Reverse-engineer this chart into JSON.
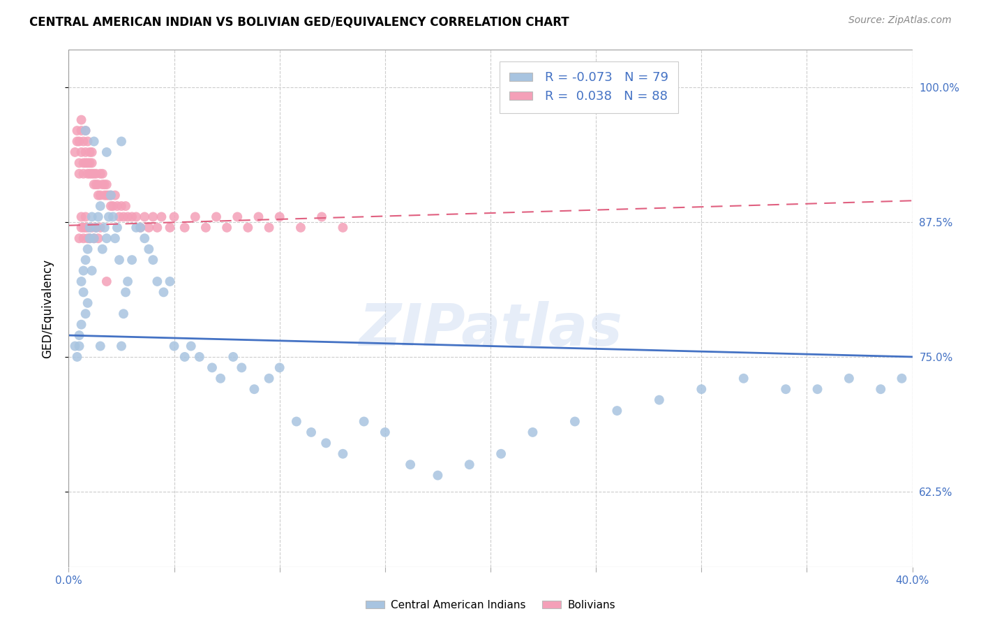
{
  "title": "CENTRAL AMERICAN INDIAN VS BOLIVIAN GED/EQUIVALENCY CORRELATION CHART",
  "source": "Source: ZipAtlas.com",
  "ylabel": "GED/Equivalency",
  "xlim": [
    0.0,
    0.4
  ],
  "ylim": [
    0.555,
    1.035
  ],
  "blue_R": "-0.073",
  "blue_N": "79",
  "pink_R": "0.038",
  "pink_N": "88",
  "blue_color": "#a8c4e0",
  "pink_color": "#f4a0b8",
  "blue_line_color": "#4472c4",
  "pink_line_color": "#e06080",
  "watermark": "ZIPatlas",
  "legend_label_blue": "Central American Indians",
  "legend_label_pink": "Bolivians",
  "ytick_positions": [
    0.625,
    0.75,
    0.875,
    1.0
  ],
  "ytick_labels": [
    "62.5%",
    "75.0%",
    "87.5%",
    "100.0%"
  ],
  "xtick_positions": [
    0.0,
    0.05,
    0.1,
    0.15,
    0.2,
    0.25,
    0.3,
    0.35,
    0.4
  ],
  "blue_line_x": [
    0.0,
    0.4
  ],
  "blue_line_y": [
    0.77,
    0.75
  ],
  "pink_line_x": [
    0.0,
    0.4
  ],
  "pink_line_y": [
    0.872,
    0.895
  ],
  "blue_scatter_x": [
    0.003,
    0.004,
    0.005,
    0.005,
    0.006,
    0.006,
    0.007,
    0.007,
    0.008,
    0.008,
    0.009,
    0.009,
    0.01,
    0.01,
    0.011,
    0.011,
    0.012,
    0.013,
    0.014,
    0.015,
    0.015,
    0.016,
    0.017,
    0.018,
    0.019,
    0.02,
    0.021,
    0.022,
    0.023,
    0.024,
    0.025,
    0.026,
    0.027,
    0.028,
    0.03,
    0.032,
    0.034,
    0.036,
    0.038,
    0.04,
    0.042,
    0.045,
    0.048,
    0.05,
    0.055,
    0.058,
    0.062,
    0.068,
    0.072,
    0.078,
    0.082,
    0.088,
    0.095,
    0.1,
    0.108,
    0.115,
    0.122,
    0.13,
    0.14,
    0.15,
    0.162,
    0.175,
    0.19,
    0.205,
    0.22,
    0.24,
    0.26,
    0.28,
    0.3,
    0.32,
    0.34,
    0.355,
    0.37,
    0.385,
    0.395,
    0.008,
    0.012,
    0.018,
    0.025
  ],
  "blue_scatter_y": [
    0.76,
    0.75,
    0.77,
    0.76,
    0.78,
    0.82,
    0.81,
    0.83,
    0.84,
    0.79,
    0.8,
    0.85,
    0.86,
    0.87,
    0.88,
    0.83,
    0.86,
    0.87,
    0.88,
    0.89,
    0.76,
    0.85,
    0.87,
    0.86,
    0.88,
    0.9,
    0.88,
    0.86,
    0.87,
    0.84,
    0.76,
    0.79,
    0.81,
    0.82,
    0.84,
    0.87,
    0.87,
    0.86,
    0.85,
    0.84,
    0.82,
    0.81,
    0.82,
    0.76,
    0.75,
    0.76,
    0.75,
    0.74,
    0.73,
    0.75,
    0.74,
    0.72,
    0.73,
    0.74,
    0.69,
    0.68,
    0.67,
    0.66,
    0.69,
    0.68,
    0.65,
    0.64,
    0.65,
    0.66,
    0.68,
    0.69,
    0.7,
    0.71,
    0.72,
    0.73,
    0.72,
    0.72,
    0.73,
    0.72,
    0.73,
    0.96,
    0.95,
    0.94,
    0.95
  ],
  "pink_scatter_x": [
    0.003,
    0.004,
    0.004,
    0.005,
    0.005,
    0.005,
    0.006,
    0.006,
    0.006,
    0.007,
    0.007,
    0.007,
    0.008,
    0.008,
    0.008,
    0.009,
    0.009,
    0.009,
    0.01,
    0.01,
    0.01,
    0.011,
    0.011,
    0.011,
    0.012,
    0.012,
    0.013,
    0.013,
    0.014,
    0.014,
    0.015,
    0.015,
    0.016,
    0.016,
    0.017,
    0.017,
    0.018,
    0.018,
    0.019,
    0.02,
    0.02,
    0.021,
    0.022,
    0.023,
    0.024,
    0.025,
    0.026,
    0.027,
    0.028,
    0.03,
    0.032,
    0.034,
    0.036,
    0.038,
    0.04,
    0.042,
    0.044,
    0.048,
    0.05,
    0.055,
    0.06,
    0.065,
    0.07,
    0.075,
    0.08,
    0.085,
    0.09,
    0.095,
    0.1,
    0.11,
    0.12,
    0.13,
    0.006,
    0.007,
    0.008,
    0.009,
    0.01,
    0.011,
    0.012,
    0.013,
    0.014,
    0.015,
    0.005,
    0.006,
    0.007,
    0.008,
    0.009,
    0.018
  ],
  "pink_scatter_y": [
    0.94,
    0.95,
    0.96,
    0.93,
    0.95,
    0.92,
    0.94,
    0.96,
    0.97,
    0.92,
    0.93,
    0.95,
    0.93,
    0.94,
    0.96,
    0.92,
    0.93,
    0.95,
    0.92,
    0.93,
    0.94,
    0.92,
    0.93,
    0.94,
    0.91,
    0.92,
    0.91,
    0.92,
    0.9,
    0.91,
    0.9,
    0.92,
    0.91,
    0.92,
    0.9,
    0.91,
    0.9,
    0.91,
    0.9,
    0.89,
    0.9,
    0.89,
    0.9,
    0.89,
    0.88,
    0.89,
    0.88,
    0.89,
    0.88,
    0.88,
    0.88,
    0.87,
    0.88,
    0.87,
    0.88,
    0.87,
    0.88,
    0.87,
    0.88,
    0.87,
    0.88,
    0.87,
    0.88,
    0.87,
    0.88,
    0.87,
    0.88,
    0.87,
    0.88,
    0.87,
    0.88,
    0.87,
    0.88,
    0.87,
    0.88,
    0.87,
    0.86,
    0.87,
    0.86,
    0.87,
    0.86,
    0.87,
    0.86,
    0.87,
    0.86,
    0.87,
    0.86,
    0.82
  ]
}
